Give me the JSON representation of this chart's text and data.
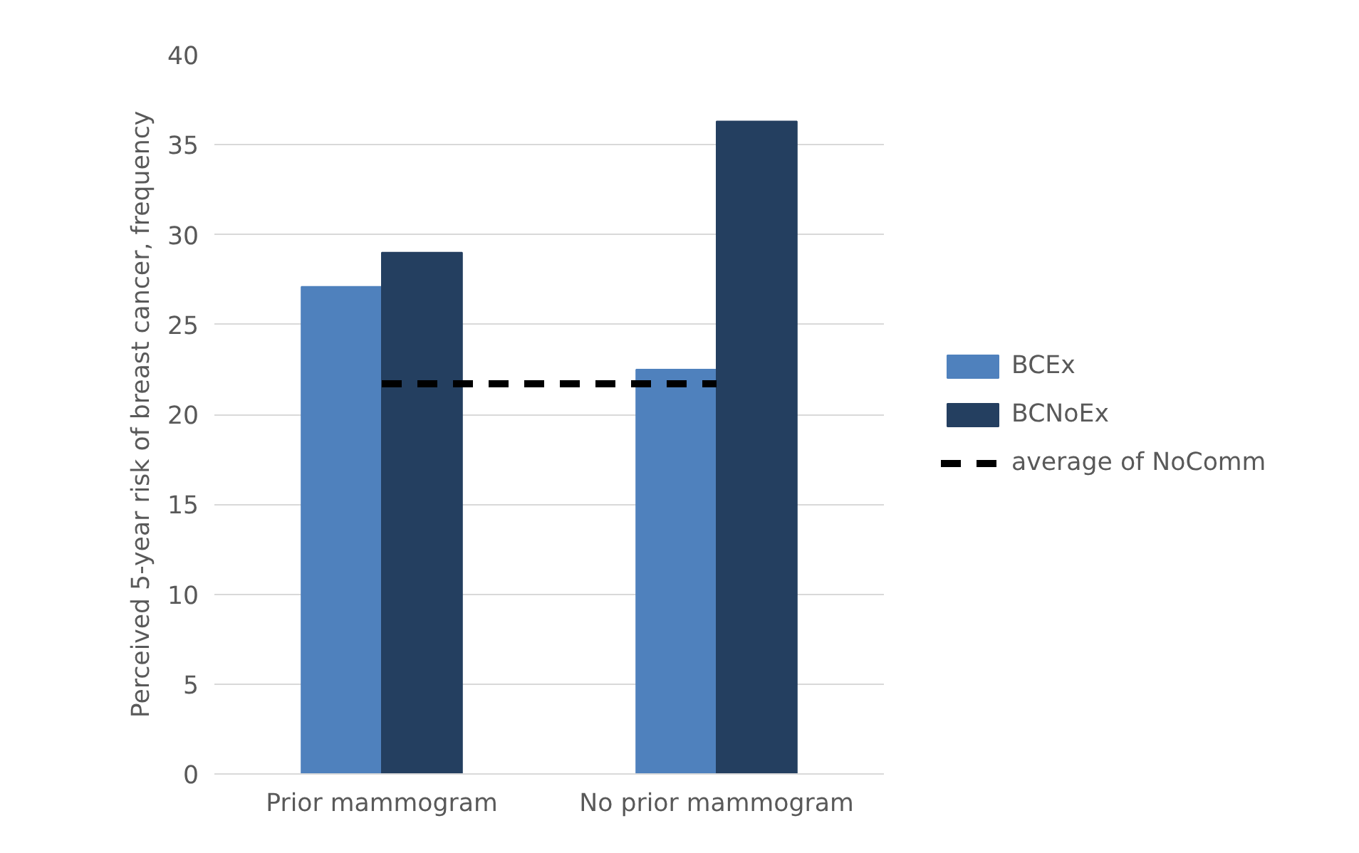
{
  "chart_data": {
    "type": "bar",
    "ylabel": "Perceived 5-year risk of breast cancer, frequency",
    "categories": [
      "Prior mammogram",
      "No prior mammogram"
    ],
    "series": [
      {
        "name": "BCEx",
        "color": "#4f81bd",
        "values": [
          27.1,
          22.5
        ]
      },
      {
        "name": "BCNoEx",
        "color": "#243f60",
        "values": [
          29.0,
          36.3
        ]
      },
      {
        "name": "average of NoComm",
        "type": "line",
        "color": "#000000",
        "line_style": "dashed",
        "values": [
          21.7,
          21.7
        ]
      }
    ],
    "ylim": [
      0,
      40
    ],
    "yticks": [
      0,
      5,
      10,
      15,
      20,
      25,
      30,
      35,
      40
    ],
    "grid": "y",
    "legend": "right"
  }
}
